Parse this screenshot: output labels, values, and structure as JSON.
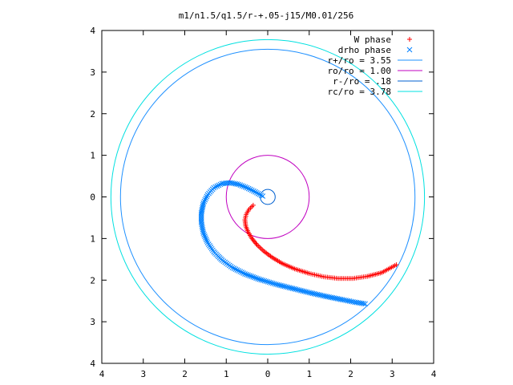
{
  "chart_data": {
    "type": "scatter",
    "title": "m1/n1.5/q1.5/r-+.05-j15/M0.01/256",
    "xlabel": "",
    "ylabel": "",
    "xlim": [
      -4,
      4
    ],
    "ylim": [
      -4,
      4
    ],
    "x_ticks": [
      -4,
      -3,
      -2,
      -1,
      0,
      1,
      2,
      3,
      4
    ],
    "y_ticks": [
      -4,
      -3,
      -2,
      -1,
      0,
      1,
      2,
      3,
      4
    ],
    "x_tick_labels": [
      "4",
      "3",
      "2",
      "1",
      "0",
      "1",
      "2",
      "3",
      "4"
    ],
    "y_tick_labels": [
      "4",
      "3",
      "2",
      "1",
      "0",
      "1",
      "2",
      "3",
      "4"
    ],
    "grid": false,
    "legend_position": "top-right",
    "series": [
      {
        "name": "W phase",
        "marker": "plus",
        "color": "#ff0000",
        "points": [
          [
            -0.35,
            -0.2
          ],
          [
            -0.45,
            -0.3
          ],
          [
            -0.52,
            -0.42
          ],
          [
            -0.55,
            -0.55
          ],
          [
            -0.53,
            -0.7
          ],
          [
            -0.47,
            -0.85
          ],
          [
            -0.38,
            -1.0
          ],
          [
            -0.26,
            -1.15
          ],
          [
            -0.1,
            -1.3
          ],
          [
            0.1,
            -1.45
          ],
          [
            0.35,
            -1.6
          ],
          [
            0.65,
            -1.73
          ],
          [
            1.0,
            -1.84
          ],
          [
            1.35,
            -1.92
          ],
          [
            1.7,
            -1.96
          ],
          [
            2.05,
            -1.96
          ],
          [
            2.4,
            -1.91
          ],
          [
            2.75,
            -1.82
          ],
          [
            3.1,
            -1.63
          ]
        ]
      },
      {
        "name": "drho phase",
        "marker": "cross",
        "color": "#0080ff",
        "points": [
          [
            -0.12,
            0.02
          ],
          [
            -0.3,
            0.12
          ],
          [
            -0.5,
            0.22
          ],
          [
            -0.7,
            0.3
          ],
          [
            -0.9,
            0.34
          ],
          [
            -1.1,
            0.32
          ],
          [
            -1.3,
            0.22
          ],
          [
            -1.45,
            0.05
          ],
          [
            -1.55,
            -0.15
          ],
          [
            -1.6,
            -0.38
          ],
          [
            -1.6,
            -0.62
          ],
          [
            -1.55,
            -0.87
          ],
          [
            -1.45,
            -1.1
          ],
          [
            -1.3,
            -1.32
          ],
          [
            -1.1,
            -1.52
          ],
          [
            -0.85,
            -1.7
          ],
          [
            -0.55,
            -1.85
          ],
          [
            -0.2,
            -1.98
          ],
          [
            0.2,
            -2.1
          ],
          [
            0.6,
            -2.2
          ],
          [
            1.0,
            -2.3
          ],
          [
            1.4,
            -2.39
          ],
          [
            1.8,
            -2.47
          ],
          [
            2.1,
            -2.53
          ],
          [
            2.35,
            -2.57
          ]
        ]
      },
      {
        "name": "r+/ro = 3.55",
        "type": "circle",
        "radius": 3.55,
        "color": "#1e90ff"
      },
      {
        "name": "ro/ro = 1.00",
        "type": "circle",
        "radius": 1.0,
        "color": "#c000c0"
      },
      {
        "name": "r-/ro = .18",
        "type": "circle",
        "radius": 0.18,
        "color": "#0060d0"
      },
      {
        "name": "rc/ro = 3.78",
        "type": "circle",
        "radius": 3.78,
        "color": "#00e0e0"
      }
    ]
  }
}
